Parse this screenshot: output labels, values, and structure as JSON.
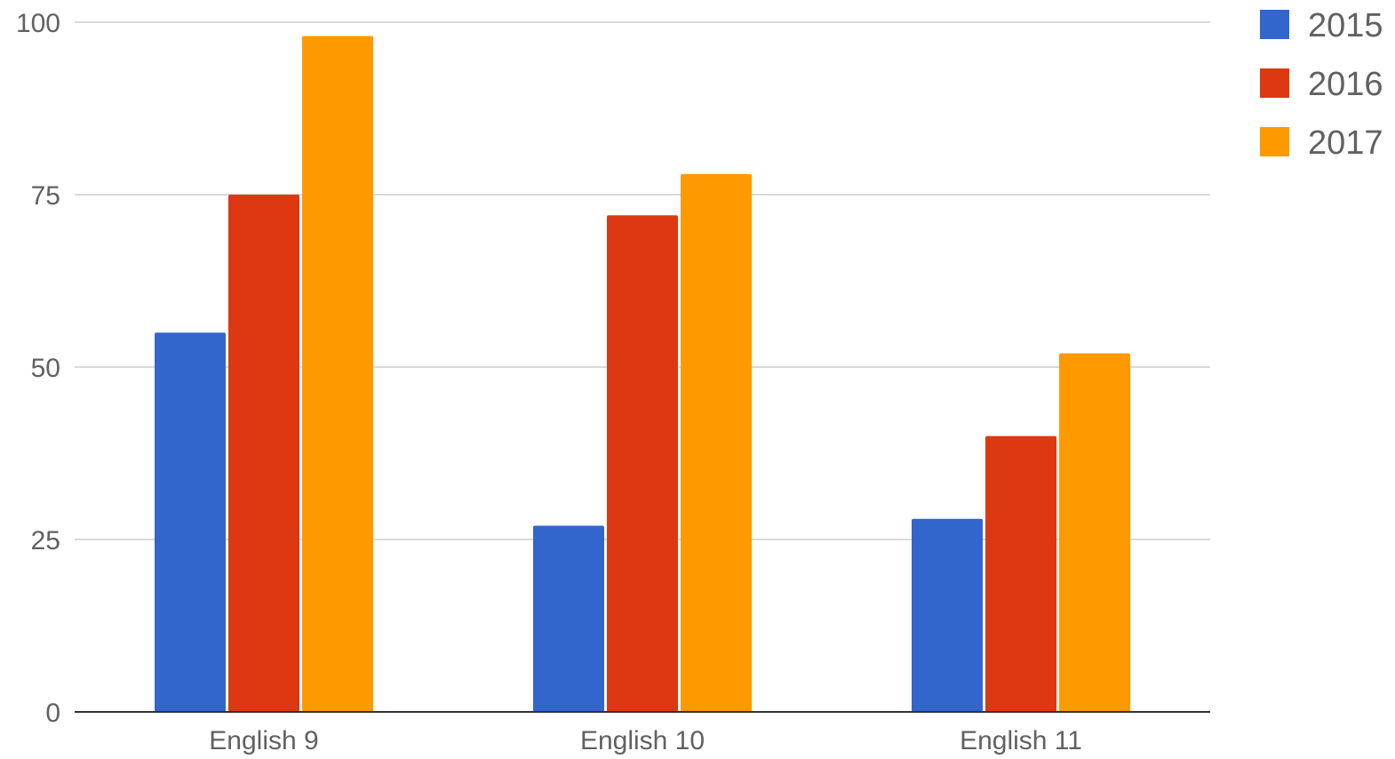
{
  "chart_data": {
    "type": "bar",
    "title": "",
    "xlabel": "",
    "ylabel": "",
    "categories": [
      "English 9",
      "English 10",
      "English 11"
    ],
    "series": [
      {
        "name": "2015",
        "color": "#3366cc",
        "values": [
          55,
          27,
          28
        ]
      },
      {
        "name": "2016",
        "color": "#dc3912",
        "values": [
          75,
          72,
          40
        ]
      },
      {
        "name": "2017",
        "color": "#ff9900",
        "values": [
          98,
          78,
          52
        ]
      }
    ],
    "ylim": [
      0,
      100
    ],
    "yticks": [
      0,
      25,
      50,
      75,
      100
    ],
    "grid": true,
    "legend_position": "right"
  }
}
